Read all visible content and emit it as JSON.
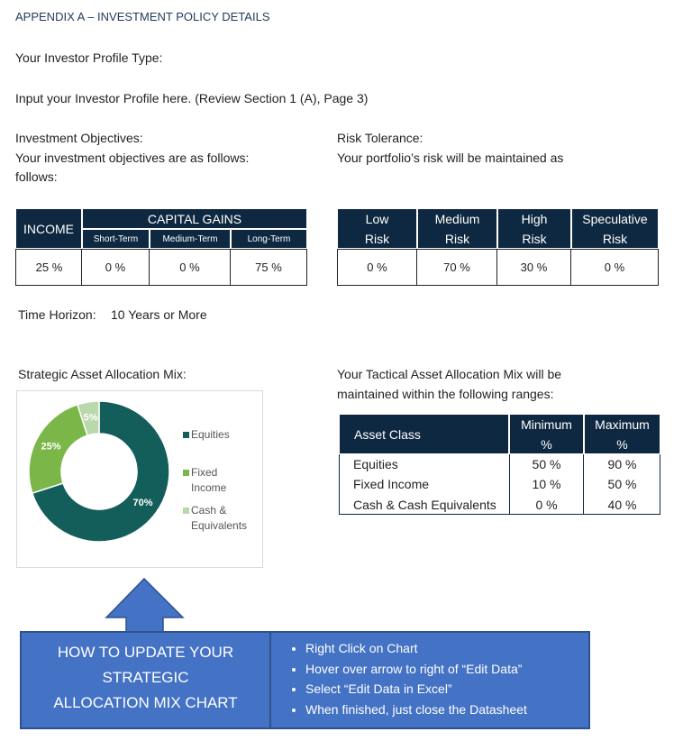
{
  "header": {
    "title": "APPENDIX A – INVESTMENT POLICY DETAILS"
  },
  "profile": {
    "label": "Your Investor Profile Type:",
    "input": "Input your Investor Profile here.  (Review Section 1 (A), Page 3)"
  },
  "objectives": {
    "title": "Investment Objectives:",
    "lines": [
      "Your investment objectives are as follows:",
      "follows:"
    ]
  },
  "risk": {
    "title": "Risk Tolerance:",
    "text": "Your portfolio’s risk will be maintained as"
  },
  "profile_table": {
    "income": "INCOME",
    "capital_gains": "CAPITAL GAINS",
    "subheaders": [
      "Short-Term",
      "Medium-Term",
      "Long-Term"
    ],
    "values": [
      "25 %",
      "0 %",
      "0 %",
      "75 %"
    ]
  },
  "risk_table": {
    "headers": [
      "Low Risk",
      "Medium Risk",
      "High Risk",
      "Speculative Risk"
    ],
    "values": [
      "0 %",
      "70 %",
      "30 %",
      "0 %"
    ]
  },
  "time_horizon": {
    "label": "Time Horizon:",
    "value": "10 Years or More"
  },
  "strategic": {
    "title": "Strategic Asset Allocation Mix:"
  },
  "tactical": {
    "lines": [
      "Your Tactical Asset Allocation Mix will be",
      "maintained within the following ranges:"
    ]
  },
  "tactical_table": {
    "headers": [
      "Asset Class",
      "Minimum %",
      "Maximum %"
    ],
    "rows": [
      [
        "Equities",
        "50 %",
        "90 %"
      ],
      [
        "Fixed Income",
        "10 %",
        "50 %"
      ],
      [
        "Cash & Cash Equivalents",
        "0 %",
        "40 %"
      ]
    ]
  },
  "chart_data": {
    "type": "pie",
    "categories": [
      "Equities",
      "Fixed Income",
      "Cash & Equivalents"
    ],
    "values": [
      70,
      25,
      5
    ],
    "value_labels": [
      "70%",
      "25%",
      "5%"
    ],
    "colors": [
      "#135e5a",
      "#7ab648",
      "#b9d8ab"
    ],
    "donut": true
  },
  "howto": {
    "title_lines": [
      "HOW TO UPDATE YOUR",
      "STRATEGIC",
      "ALLOCATION MIX CHART"
    ],
    "steps": [
      "Right Click on Chart",
      "Hover over arrow to right of “Edit Data”",
      "Select “Edit Data in Excel”",
      "When finished, just close the Datasheet"
    ]
  }
}
